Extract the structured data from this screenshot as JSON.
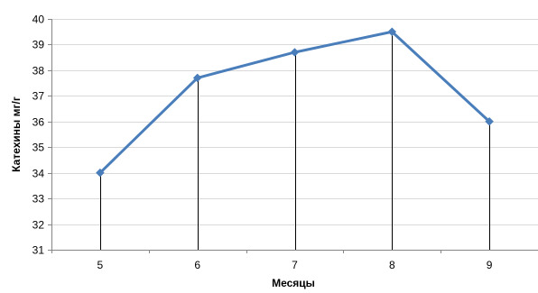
{
  "chart_data": {
    "type": "line",
    "title": "",
    "xlabel": "Месяцы",
    "ylabel": "Катехины мг/г",
    "x": [
      5,
      6,
      7,
      8,
      9
    ],
    "categories": [
      "5",
      "6",
      "7",
      "8",
      "9"
    ],
    "series": [
      {
        "values": [
          34.0,
          37.7,
          38.7,
          39.5,
          36.0
        ]
      }
    ],
    "ylim": [
      31,
      40
    ],
    "yticks": [
      31,
      32,
      33,
      34,
      35,
      36,
      37,
      38,
      39,
      40
    ],
    "grid": "horizontal",
    "drop_lines": true,
    "marker": "diamond",
    "legend": "none",
    "colors": {
      "line": "#4a7ebb",
      "grid": "#d9d9d9",
      "axis": "#868686",
      "drop_line": "#000000"
    }
  }
}
